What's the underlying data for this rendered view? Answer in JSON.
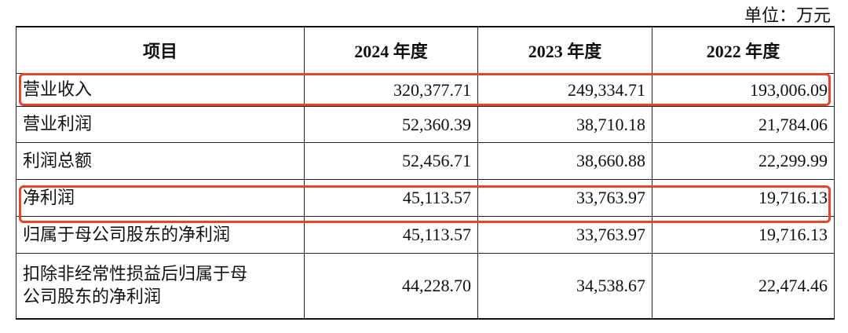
{
  "header": {
    "unit": "单位：万元"
  },
  "table": {
    "columns": [
      "项目",
      "2024 年度",
      "2023 年度",
      "2022 年度"
    ],
    "rows": [
      [
        "营业收入",
        "320,377.71",
        "249,334.71",
        "193,006.09"
      ],
      [
        "营业利润",
        "52,360.39",
        "38,710.18",
        "21,784.06"
      ],
      [
        "利润总额",
        "52,456.71",
        "38,660.88",
        "22,299.99"
      ],
      [
        "净利润",
        "45,113.57",
        "33,763.97",
        "19,716.13"
      ],
      [
        "归属于母公司股东的净利润",
        "45,113.57",
        "33,763.97",
        "19,716.13"
      ],
      [
        "扣除非经常性损益后归属于母公司股东的净利润",
        "44,228.70",
        "34,538.67",
        "22,474.46"
      ]
    ]
  }
}
